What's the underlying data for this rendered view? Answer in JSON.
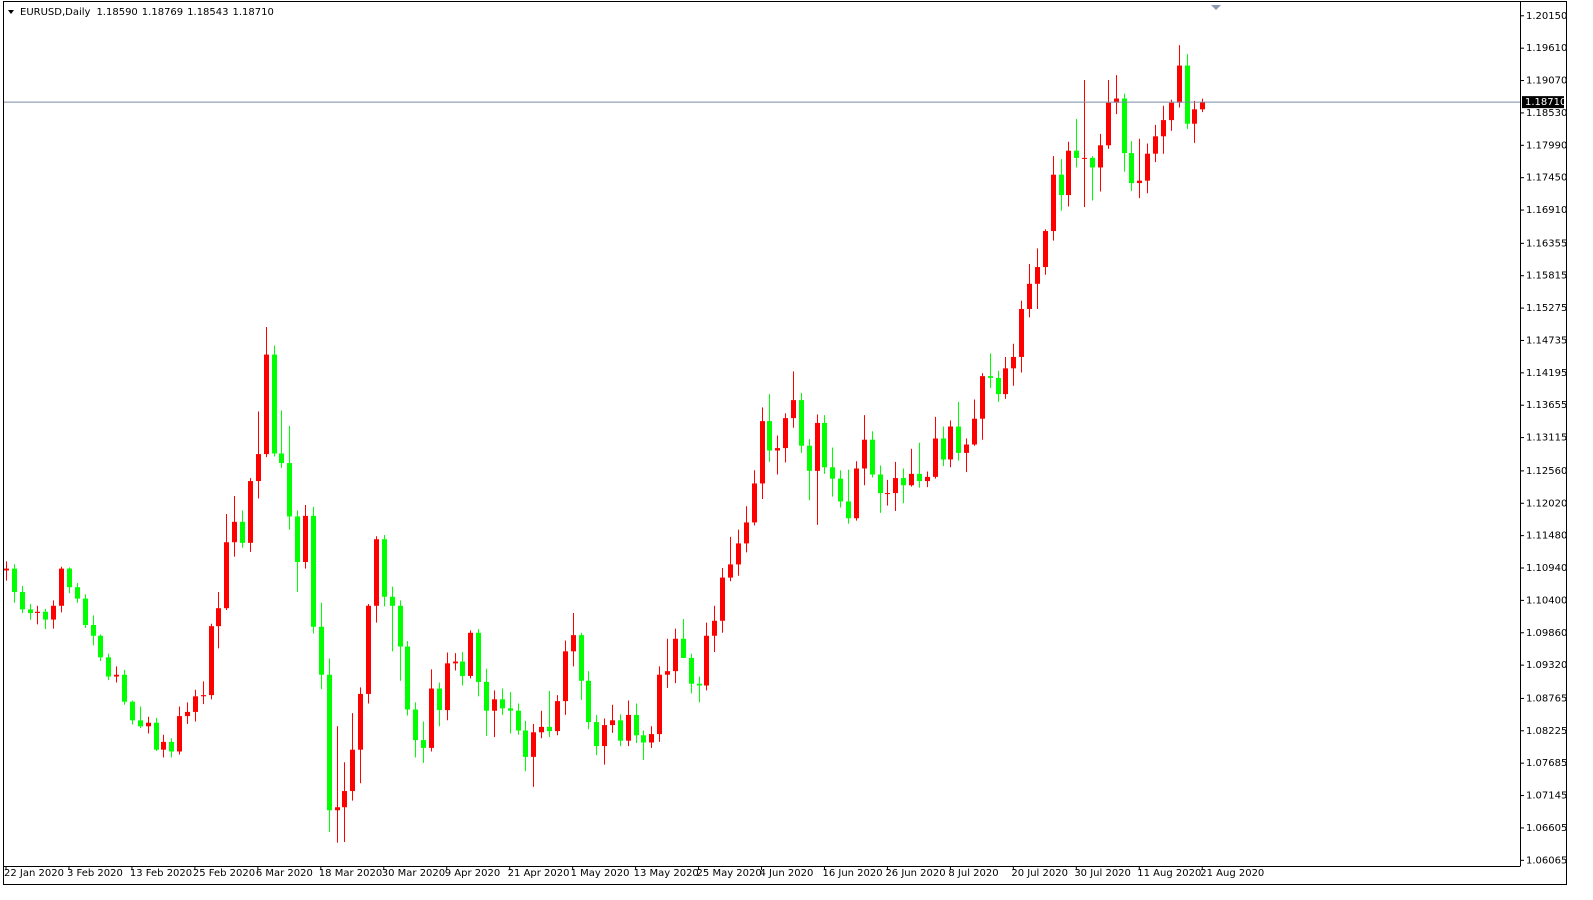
{
  "chart_data": {
    "type": "candlestick",
    "title": "EURUSD,Daily",
    "header_values": [
      "1.18590",
      "1.18769",
      "1.18543",
      "1.18710"
    ],
    "up_color": "#ff0000",
    "down_color": "#00ff00",
    "grid": false,
    "categories": [
      "22 Jan 2020",
      null,
      null,
      null,
      null,
      null,
      null,
      null,
      "3 Feb 2020",
      null,
      null,
      null,
      null,
      null,
      null,
      null,
      "13 Feb 2020",
      null,
      null,
      null,
      null,
      null,
      null,
      null,
      "25 Feb 2020",
      null,
      null,
      null,
      null,
      null,
      null,
      null,
      "6 Mar 2020",
      null,
      null,
      null,
      null,
      null,
      null,
      null,
      "18 Mar 2020",
      null,
      null,
      null,
      null,
      null,
      null,
      null,
      "30 Mar 2020",
      null,
      null,
      null,
      null,
      null,
      null,
      null,
      "9 Apr 2020",
      null,
      null,
      null,
      null,
      null,
      null,
      null,
      "21 Apr 2020",
      null,
      null,
      null,
      null,
      null,
      null,
      null,
      "1 May 2020",
      null,
      null,
      null,
      null,
      null,
      null,
      null,
      "13 May 2020",
      null,
      null,
      null,
      null,
      null,
      null,
      null,
      "25 May 2020",
      null,
      null,
      null,
      null,
      null,
      null,
      null,
      "4 Jun 2020",
      null,
      null,
      null,
      null,
      null,
      null,
      null,
      "16 Jun 2020",
      null,
      null,
      null,
      null,
      null,
      null,
      null,
      "26 Jun 2020",
      null,
      null,
      null,
      null,
      null,
      null,
      null,
      "8 Jul 2020",
      null,
      null,
      null,
      null,
      null,
      null,
      null,
      "20 Jul 2020",
      null,
      null,
      null,
      null,
      null,
      null,
      null,
      "30 Jul 2020",
      null,
      null,
      null,
      null,
      null,
      null,
      null,
      "11 Aug 2020",
      null,
      null,
      null,
      null,
      null,
      null,
      null,
      "21 Aug 2020"
    ],
    "open": [
      1.109,
      1.1093,
      1.1054,
      1.1025,
      1.1019,
      1.1021,
      1.1008,
      1.1031,
      1.1093,
      1.1062,
      1.1043,
      1.0999,
      1.0981,
      1.0945,
      1.0913,
      1.0916,
      1.0871,
      1.084,
      1.083,
      1.0836,
      1.0791,
      1.0804,
      1.0788,
      1.0847,
      1.0854,
      1.088,
      1.0882,
      1.0997,
      1.1027,
      1.1137,
      1.1171,
      1.1136,
      1.1239,
      1.1284,
      1.145,
      1.1285,
      1.1269,
      1.118,
      1.1104,
      1.1181,
      1.0996,
      1.0916,
      1.069,
      1.0695,
      1.0722,
      1.0791,
      1.0884,
      1.1031,
      1.1142,
      1.1046,
      1.1031,
      1.0963,
      1.0858,
      1.0807,
      1.0794,
      1.0893,
      1.0857,
      1.0935,
      1.0938,
      1.0914,
      1.0986,
      1.0904,
      1.0856,
      1.0875,
      1.086,
      1.0856,
      1.0823,
      1.0779,
      1.082,
      1.0829,
      1.0822,
      1.0872,
      1.0955,
      1.0982,
      1.0906,
      1.0837,
      1.0797,
      1.0832,
      1.084,
      1.0806,
      1.0849,
      1.0815,
      1.0803,
      1.0817,
      1.0916,
      1.0922,
      1.0976,
      1.0944,
      1.0901,
      1.0898,
      1.0981,
      1.1006,
      1.1078,
      1.11,
      1.1135,
      1.117,
      1.1235,
      1.1339,
      1.129,
      1.1294,
      1.1344,
      1.1374,
      1.1298,
      1.1256,
      1.1336,
      1.1262,
      1.1243,
      1.1205,
      1.1177,
      1.126,
      1.1308,
      1.125,
      1.1219,
      1.1219,
      1.1244,
      1.1232,
      1.1251,
      1.1239,
      1.1246,
      1.131,
      1.1275,
      1.133,
      1.1286,
      1.13,
      1.1343,
      1.1414,
      1.1411,
      1.1384,
      1.1427,
      1.1446,
      1.1526,
      1.1568,
      1.1596,
      1.1656,
      1.175,
      1.1716,
      1.179,
      1.1778,
      1.1778,
      1.1762,
      1.1799,
      1.187,
      1.1877,
      1.1786,
      1.1736,
      1.174,
      1.1785,
      1.1814,
      1.1841,
      1.187,
      1.1932,
      1.1835,
      1.1859
    ],
    "high": [
      1.1105,
      1.11,
      1.1064,
      1.1034,
      1.1031,
      1.1026,
      1.104,
      1.1096,
      1.1095,
      1.1069,
      1.105,
      1.1015,
      1.0983,
      1.0951,
      1.093,
      1.0924,
      1.0873,
      1.0863,
      1.0846,
      1.0844,
      1.0816,
      1.081,
      1.0863,
      1.087,
      1.0891,
      1.0905,
      1.1001,
      1.1054,
      1.1184,
      1.1214,
      1.119,
      1.1244,
      1.1355,
      1.1496,
      1.1465,
      1.1357,
      1.1331,
      1.119,
      1.1199,
      1.1196,
      1.1036,
      1.0943,
      1.083,
      1.077,
      1.0852,
      1.0895,
      1.1034,
      1.1147,
      1.1149,
      1.1063,
      1.104,
      1.0972,
      1.087,
      1.0838,
      1.0925,
      1.0903,
      1.0953,
      1.0952,
      1.0954,
      1.099,
      1.0992,
      1.0926,
      1.089,
      1.0893,
      1.0887,
      1.0868,
      1.0839,
      1.0834,
      1.0856,
      1.0889,
      1.0882,
      1.0973,
      1.1019,
      1.0986,
      1.0922,
      1.0849,
      1.0843,
      1.0866,
      1.085,
      1.0873,
      1.0868,
      1.0823,
      1.083,
      1.093,
      1.0976,
      1.0993,
      1.1009,
      1.0951,
      1.0913,
      1.1003,
      1.1031,
      1.1094,
      1.1146,
      1.1158,
      1.1197,
      1.1257,
      1.1362,
      1.1384,
      1.1315,
      1.1352,
      1.1422,
      1.1386,
      1.1309,
      1.135,
      1.1349,
      1.1295,
      1.1257,
      1.1258,
      1.1272,
      1.1349,
      1.1322,
      1.1265,
      1.1241,
      1.1271,
      1.126,
      1.1293,
      1.1303,
      1.1255,
      1.1346,
      1.133,
      1.134,
      1.1371,
      1.131,
      1.1375,
      1.1419,
      1.1452,
      1.1423,
      1.1446,
      1.1468,
      1.154,
      1.1601,
      1.1627,
      1.1659,
      1.1781,
      1.1776,
      1.1805,
      1.1843,
      1.1908,
      1.1781,
      1.1818,
      1.1908,
      1.1916,
      1.1885,
      1.1806,
      1.181,
      1.1802,
      1.1833,
      1.1865,
      1.1875,
      1.1966,
      1.1951,
      1.1873,
      1.18769
    ],
    "low": [
      1.1073,
      1.1036,
      1.1019,
      1.1008,
      1.1,
      1.0992,
      1.0993,
      1.102,
      1.1052,
      1.1036,
      1.0994,
      1.0965,
      1.0939,
      1.0907,
      1.0903,
      1.0866,
      1.0833,
      1.0827,
      1.0818,
      1.0789,
      1.0778,
      1.0778,
      1.0783,
      1.0834,
      1.0838,
      1.0867,
      1.0875,
      1.096,
      1.1024,
      1.1113,
      1.1128,
      1.1121,
      1.121,
      1.1279,
      1.128,
      1.1261,
      1.1158,
      1.1054,
      1.1093,
      1.0985,
      1.0892,
      1.0654,
      1.0636,
      1.0637,
      1.0706,
      1.0735,
      1.0868,
      1.1003,
      1.103,
      1.0955,
      1.0906,
      1.0848,
      1.0778,
      1.0769,
      1.0788,
      1.083,
      1.084,
      1.0923,
      1.0898,
      1.091,
      1.088,
      1.0814,
      1.0812,
      1.0849,
      1.0818,
      1.0816,
      1.0755,
      1.0729,
      1.081,
      1.0812,
      1.0815,
      1.0849,
      1.093,
      1.0874,
      1.0825,
      1.0782,
      1.0766,
      1.0819,
      1.0797,
      1.0797,
      1.0802,
      1.0774,
      1.0794,
      1.0804,
      1.0894,
      1.0902,
      1.0944,
      1.0885,
      1.087,
      1.089,
      1.0954,
      1.0986,
      1.1072,
      1.1081,
      1.112,
      1.1165,
      1.1209,
      1.1271,
      1.125,
      1.127,
      1.1328,
      1.1286,
      1.1207,
      1.1166,
      1.1251,
      1.1213,
      1.1195,
      1.1168,
      1.1173,
      1.1232,
      1.1245,
      1.1186,
      1.1198,
      1.1189,
      1.1202,
      1.123,
      1.1228,
      1.1229,
      1.1243,
      1.1264,
      1.1262,
      1.1273,
      1.1254,
      1.1298,
      1.1308,
      1.1394,
      1.1371,
      1.1376,
      1.1398,
      1.142,
      1.1512,
      1.1526,
      1.1583,
      1.164,
      1.169,
      1.1697,
      1.1762,
      1.1696,
      1.1707,
      1.1722,
      1.1793,
      1.1851,
      1.1755,
      1.1723,
      1.1711,
      1.1719,
      1.1771,
      1.1785,
      1.1823,
      1.1862,
      1.1826,
      1.1803,
      1.18543
    ],
    "close": [
      1.1093,
      1.1054,
      1.1025,
      1.1019,
      1.1021,
      1.1008,
      1.1031,
      1.1093,
      1.1062,
      1.1043,
      1.0999,
      1.0981,
      1.0945,
      1.0913,
      1.0916,
      1.0871,
      1.084,
      1.083,
      1.0836,
      1.0791,
      1.0804,
      1.0788,
      1.0847,
      1.0854,
      1.088,
      1.0882,
      1.0997,
      1.1027,
      1.1137,
      1.1171,
      1.1136,
      1.1239,
      1.1284,
      1.145,
      1.1285,
      1.1269,
      1.118,
      1.1104,
      1.1181,
      1.0996,
      1.0916,
      1.069,
      1.0695,
      1.0722,
      1.0791,
      1.0884,
      1.1031,
      1.1142,
      1.1046,
      1.1031,
      1.0963,
      1.0858,
      1.0807,
      1.0794,
      1.0893,
      1.0857,
      1.0935,
      1.0938,
      1.0914,
      1.0986,
      1.0904,
      1.0856,
      1.0875,
      1.086,
      1.0856,
      1.0823,
      1.0779,
      1.082,
      1.0829,
      1.0822,
      1.0872,
      1.0955,
      1.0982,
      1.0906,
      1.0837,
      1.0797,
      1.0832,
      1.084,
      1.0806,
      1.0849,
      1.0815,
      1.0803,
      1.0817,
      1.0916,
      1.0922,
      1.0976,
      1.0944,
      1.0901,
      1.0898,
      1.0981,
      1.1006,
      1.1078,
      1.11,
      1.1135,
      1.117,
      1.1235,
      1.1339,
      1.129,
      1.1294,
      1.1344,
      1.1374,
      1.1298,
      1.1256,
      1.1336,
      1.1262,
      1.1243,
      1.1205,
      1.1177,
      1.126,
      1.1308,
      1.125,
      1.1219,
      1.1219,
      1.1244,
      1.1232,
      1.1251,
      1.1239,
      1.1246,
      1.131,
      1.1275,
      1.133,
      1.1286,
      1.13,
      1.1343,
      1.1414,
      1.1411,
      1.1384,
      1.1427,
      1.1446,
      1.1526,
      1.1568,
      1.1596,
      1.1656,
      1.175,
      1.1716,
      1.179,
      1.1778,
      1.1778,
      1.1762,
      1.1799,
      1.187,
      1.1877,
      1.1786,
      1.1736,
      1.174,
      1.1785,
      1.1814,
      1.1841,
      1.187,
      1.1932,
      1.1835,
      1.1859,
      1.1871
    ],
    "current_price": {
      "value": 1.1871,
      "label": "1.18710"
    },
    "ylim": [
      1.0597,
      1.2038
    ],
    "yticks": [
      {
        "value": 1.2015,
        "label": "1.20150"
      },
      {
        "value": 1.1961,
        "label": "1.19610"
      },
      {
        "value": 1.1907,
        "label": "1.19070"
      },
      {
        "value": 1.1853,
        "label": "1.18530"
      },
      {
        "value": 1.1799,
        "label": "1.17990"
      },
      {
        "value": 1.1745,
        "label": "1.17450"
      },
      {
        "value": 1.1691,
        "label": "1.16910"
      },
      {
        "value": 1.16355,
        "label": "1.16355"
      },
      {
        "value": 1.15815,
        "label": "1.15815"
      },
      {
        "value": 1.15275,
        "label": "1.15275"
      },
      {
        "value": 1.14735,
        "label": "1.14735"
      },
      {
        "value": 1.14195,
        "label": "1.14195"
      },
      {
        "value": 1.13655,
        "label": "1.13655"
      },
      {
        "value": 1.13115,
        "label": "1.13115"
      },
      {
        "value": 1.1256,
        "label": "1.12560"
      },
      {
        "value": 1.1202,
        "label": "1.12020"
      },
      {
        "value": 1.1148,
        "label": "1.11480"
      },
      {
        "value": 1.1094,
        "label": "1.10940"
      },
      {
        "value": 1.104,
        "label": "1.10400"
      },
      {
        "value": 1.0986,
        "label": "1.09860"
      },
      {
        "value": 1.0932,
        "label": "1.09320"
      },
      {
        "value": 1.08765,
        "label": "1.08765"
      },
      {
        "value": 1.08225,
        "label": "1.08225"
      },
      {
        "value": 1.07685,
        "label": "1.07685"
      },
      {
        "value": 1.07145,
        "label": "1.07145"
      },
      {
        "value": 1.06605,
        "label": "1.06605"
      },
      {
        "value": 1.06065,
        "label": "1.06065"
      }
    ]
  }
}
